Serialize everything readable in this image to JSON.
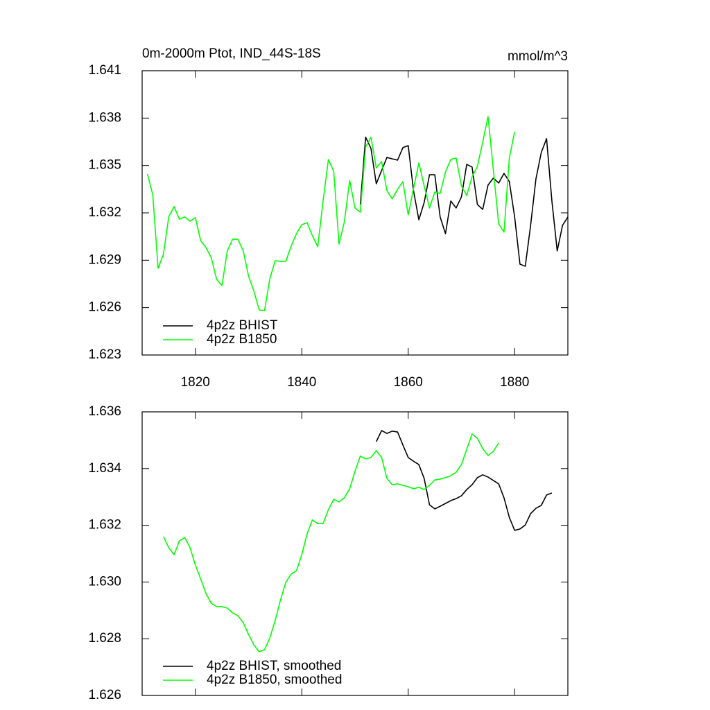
{
  "chart_data": [
    {
      "type": "line",
      "title": "0m-2000m Ptot, IND_44S-18S",
      "units": "mmol/m^3",
      "xlim": [
        1810,
        1890
      ],
      "xticks": [
        1820,
        1840,
        1860,
        1880
      ],
      "xtick_labels": true,
      "ylim": [
        1.623,
        1.641
      ],
      "yticks": [
        1.623,
        1.626,
        1.629,
        1.632,
        1.635,
        1.638,
        1.641
      ],
      "legend": "lower left",
      "series": [
        {
          "name": "4p2z BHIST",
          "color": "#000000",
          "x": [
            1851,
            1852,
            1853,
            1854,
            1855,
            1856,
            1857,
            1858,
            1859,
            1860,
            1861,
            1862,
            1863,
            1864,
            1865,
            1866,
            1867,
            1868,
            1869,
            1870,
            1871,
            1872,
            1873,
            1874,
            1875,
            1876,
            1877,
            1878,
            1879,
            1880,
            1881,
            1882,
            1883,
            1884,
            1885,
            1886,
            1887,
            1888,
            1889,
            1890
          ],
          "values": [
            1.63253,
            1.63679,
            1.63608,
            1.63384,
            1.63468,
            1.63551,
            1.63542,
            1.63534,
            1.63613,
            1.63626,
            1.6334,
            1.63156,
            1.63266,
            1.63441,
            1.63441,
            1.63174,
            1.63068,
            1.63275,
            1.63231,
            1.63301,
            1.63507,
            1.6349,
            1.63253,
            1.63222,
            1.63376,
            1.6342,
            1.63389,
            1.6345,
            1.63398,
            1.63174,
            1.62875,
            1.62862,
            1.63121,
            1.63415,
            1.63582,
            1.6367,
            1.63275,
            1.62959,
            1.63121,
            1.63174
          ]
        },
        {
          "name": "4p2z B1850",
          "color": "#00ff00",
          "x": [
            1811,
            1812,
            1813,
            1814,
            1815,
            1816,
            1817,
            1818,
            1819,
            1820,
            1821,
            1822,
            1823,
            1824,
            1825,
            1826,
            1827,
            1828,
            1829,
            1830,
            1831,
            1832,
            1833,
            1834,
            1835,
            1836,
            1837,
            1838,
            1839,
            1840,
            1841,
            1842,
            1843,
            1844,
            1845,
            1846,
            1847,
            1848,
            1849,
            1850,
            1851,
            1852,
            1853,
            1854,
            1855,
            1856,
            1857,
            1858,
            1859,
            1860,
            1861,
            1862,
            1863,
            1864,
            1865,
            1866,
            1867,
            1868,
            1869,
            1870,
            1871,
            1872,
            1873,
            1874,
            1875,
            1876,
            1877,
            1878,
            1879,
            1880
          ],
          "values": [
            1.63446,
            1.63314,
            1.62849,
            1.62937,
            1.63174,
            1.6324,
            1.6316,
            1.63174,
            1.63147,
            1.6317,
            1.63024,
            1.6298,
            1.62915,
            1.62779,
            1.62739,
            1.62959,
            1.63033,
            1.63033,
            1.62959,
            1.628,
            1.62704,
            1.62585,
            1.62581,
            1.62783,
            1.62897,
            1.62893,
            1.62893,
            1.62989,
            1.63068,
            1.63125,
            1.63138,
            1.63055,
            1.62985,
            1.63275,
            1.63538,
            1.63463,
            1.63002,
            1.63143,
            1.63406,
            1.63231,
            1.63204,
            1.63617,
            1.63679,
            1.63485,
            1.63525,
            1.6334,
            1.63288,
            1.63349,
            1.63398,
            1.63187,
            1.63354,
            1.63516,
            1.63371,
            1.63231,
            1.63332,
            1.63323,
            1.63459,
            1.63538,
            1.63547,
            1.63371,
            1.6331,
            1.63428,
            1.63494,
            1.63648,
            1.6381,
            1.63472,
            1.6313,
            1.63078,
            1.63547,
            1.63714
          ]
        }
      ]
    },
    {
      "type": "line",
      "xlim": [
        1810,
        1890
      ],
      "xticks": [
        1820,
        1840,
        1860,
        1880
      ],
      "xtick_labels": false,
      "ylim": [
        1.626,
        1.636
      ],
      "yticks": [
        1.626,
        1.628,
        {
          "value": 1.63,
          "label": "1.630"
        },
        1.632,
        1.634,
        1.636
      ],
      "legend": "lower left",
      "series": [
        {
          "name": "4p2z BHIST, smoothed",
          "color": "#000000",
          "x": [
            1854,
            1855,
            1856,
            1857,
            1858,
            1859,
            1860,
            1861,
            1862,
            1863,
            1864,
            1865,
            1866,
            1867,
            1868,
            1869,
            1870,
            1871,
            1872,
            1873,
            1874,
            1875,
            1876,
            1877,
            1878,
            1879,
            1880,
            1881,
            1882,
            1883,
            1884,
            1885,
            1886,
            1887
          ],
          "values": [
            1.63495,
            1.63534,
            1.63524,
            1.63532,
            1.63529,
            1.63483,
            1.63439,
            1.63426,
            1.63414,
            1.63365,
            1.63272,
            1.63258,
            1.63267,
            1.63277,
            1.63287,
            1.63294,
            1.63304,
            1.63326,
            1.63343,
            1.63368,
            1.63378,
            1.6337,
            1.63358,
            1.63346,
            1.63297,
            1.63228,
            1.63182,
            1.63187,
            1.63201,
            1.63241,
            1.6326,
            1.6327,
            1.63307,
            1.63314
          ]
        },
        {
          "name": "4p2z B1850, smoothed",
          "color": "#00ff00",
          "x": [
            1814,
            1815,
            1816,
            1817,
            1818,
            1819,
            1820,
            1821,
            1822,
            1823,
            1824,
            1825,
            1826,
            1827,
            1828,
            1829,
            1830,
            1831,
            1832,
            1833,
            1834,
            1835,
            1836,
            1837,
            1838,
            1839,
            1840,
            1841,
            1842,
            1843,
            1844,
            1845,
            1846,
            1847,
            1848,
            1849,
            1850,
            1851,
            1852,
            1853,
            1854,
            1855,
            1856,
            1857,
            1858,
            1859,
            1860,
            1861,
            1862,
            1863,
            1864,
            1865,
            1866,
            1867,
            1868,
            1869,
            1870,
            1871,
            1872,
            1873,
            1874,
            1875,
            1876,
            1877
          ],
          "values": [
            1.6316,
            1.63121,
            1.63096,
            1.63145,
            1.63157,
            1.63121,
            1.6306,
            1.63011,
            1.62959,
            1.62925,
            1.62913,
            1.62913,
            1.62908,
            1.62891,
            1.62881,
            1.62857,
            1.62815,
            1.62778,
            1.62754,
            1.62761,
            1.62803,
            1.62864,
            1.62937,
            1.62999,
            1.63028,
            1.6304,
            1.63096,
            1.6317,
            1.63219,
            1.63206,
            1.63206,
            1.63255,
            1.63292,
            1.63282,
            1.63297,
            1.63329,
            1.6339,
            1.63444,
            1.63434,
            1.63439,
            1.63463,
            1.63439,
            1.63365,
            1.63343,
            1.63346,
            1.63341,
            1.63336,
            1.63329,
            1.63334,
            1.63326,
            1.63341,
            1.6336,
            1.63363,
            1.63368,
            1.63375,
            1.63387,
            1.63414,
            1.63468,
            1.63522,
            1.63507,
            1.6347,
            1.63446,
            1.63461,
            1.6349
          ]
        }
      ]
    }
  ]
}
